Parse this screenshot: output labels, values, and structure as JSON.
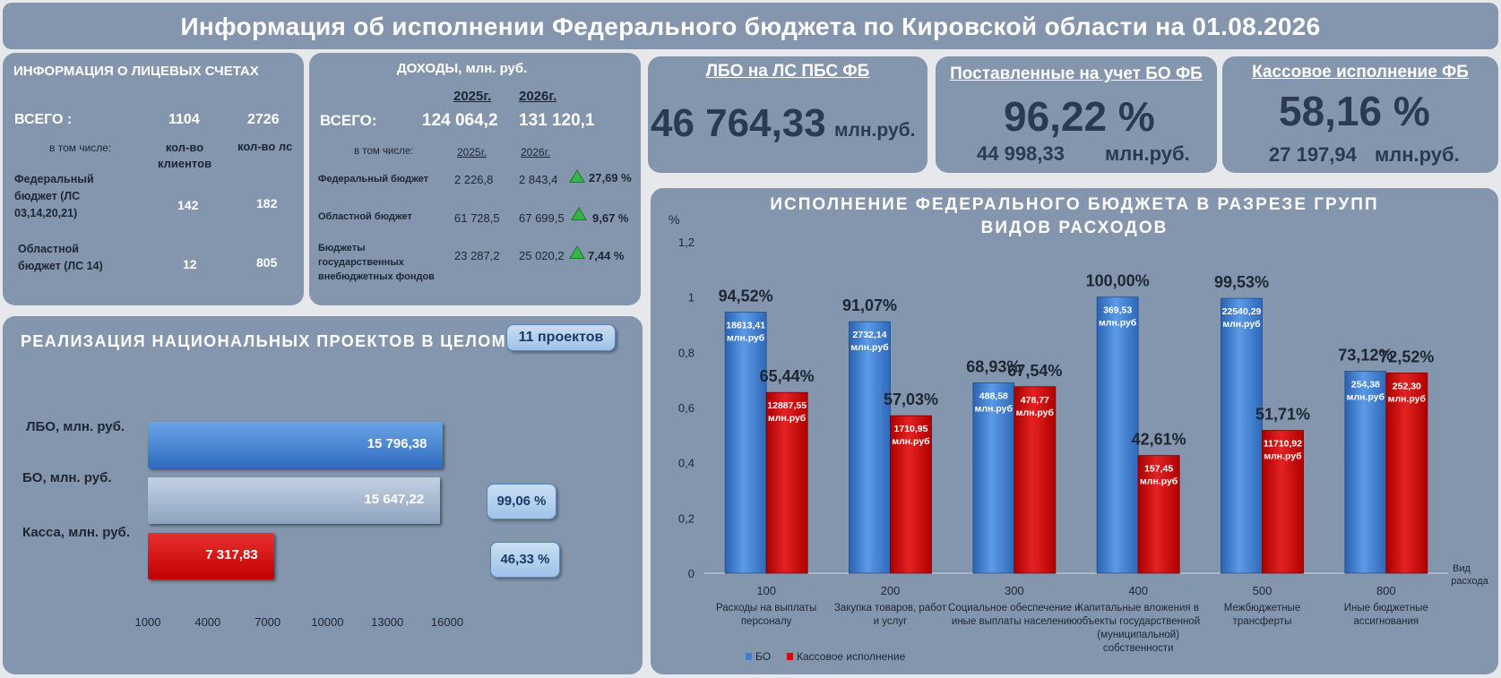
{
  "title": "Информация об исполнении Федерального бюджета по Кировской области на 01.08.2026",
  "accounts": {
    "heading": "ИНФОРМАЦИЯ О ЛИЦЕВЫХ СЧЕТАХ",
    "total_label": "ВСЕГО :",
    "total_clients": "1104",
    "total_ls": "2726",
    "including": "в том числе:",
    "col_clients": "кол-во клиентов",
    "col_ls": "кол-во лс",
    "rows": [
      {
        "label": "Федеральный бюджет (ЛС 03,14,20,21)",
        "clients": "142",
        "ls": "182"
      },
      {
        "label": "Областной бюджет (ЛС 14)",
        "clients": "12",
        "ls": "805"
      }
    ]
  },
  "income": {
    "heading": "ДОХОДЫ, млн. руб.",
    "y1": "2025г.",
    "y2": "2026г.",
    "total_label": "ВСЕГО:",
    "total_y1": "124 064,2",
    "total_y2": "131 120,1",
    "including": "в том числе:",
    "sub_y1": "2025г.",
    "sub_y2": "2026г.",
    "rows": [
      {
        "label": "Федеральный бюджет",
        "y1": "2 226,8",
        "y2": "2 843,4",
        "growth": "27,69 %"
      },
      {
        "label": "Областной бюджет",
        "y1": "61 728,5",
        "y2": "67 699,5",
        "growth": "9,67 %"
      },
      {
        "label": "Бюджеты государственных внебюджетных фондов",
        "y1": "23 287,2",
        "y2": "25 020,2",
        "growth": "7,44 %"
      }
    ]
  },
  "kpi": {
    "lbo": {
      "title": "ЛБО на ЛС ПБС ФБ",
      "value": "46 764,33",
      "unit": "млн.руб."
    },
    "bo": {
      "title": "Поставленные на учет БО ФБ",
      "percent": "96,22 %",
      "value": "44 998,33",
      "unit": "млн.руб."
    },
    "cash": {
      "title": "Кассовое исполнение ФБ",
      "percent": "58,16 %",
      "value": "27 197,94",
      "unit": "млн.руб."
    }
  },
  "projects": {
    "heading": "РЕАЛИЗАЦИЯ НАЦИОНАЛЬНЫХ ПРОЕКТОВ В ЦЕЛОМ",
    "badge": "11 проектов",
    "pct_bo": "99,06  %",
    "pct_cash": "46,33 %",
    "colors": {
      "lbo": "#3f7fcd",
      "bo": "#9fb2ca",
      "cash": "#d50a0a"
    }
  },
  "chart_data": [
    {
      "type": "bar",
      "orientation": "horizontal",
      "categories": [
        "ЛБО, млн. руб.",
        "БО, млн. руб.",
        "Касса, млн. руб."
      ],
      "values": [
        15796.38,
        15647.22,
        7317.83
      ],
      "value_labels": [
        "15 796,38",
        "15 647,22",
        "7 317,83"
      ],
      "xlim": [
        1000,
        16000
      ],
      "xticks": [
        "1000",
        "4000",
        "7000",
        "10000",
        "13000",
        "16000"
      ],
      "grid": false
    },
    {
      "type": "bar",
      "title": "ИСПОЛНЕНИЕ ФЕДЕРАЛЬНОГО БЮДЖЕТА В РАЗРЕЗЕ ГРУПП ВИДОВ РАСХОДОВ",
      "ylabel": "%",
      "xlabel": "Вид расхода",
      "ylim": [
        0,
        1.2
      ],
      "yticks": [
        "0",
        "0,2",
        "0,4",
        "0,6",
        "0,8",
        "1",
        "1,2"
      ],
      "legend": "bottom-left",
      "grid": false,
      "categories": [
        {
          "code": "100",
          "name": "Расходы на выплаты персоналу"
        },
        {
          "code": "200",
          "name": "Закупка товаров, работ и услуг"
        },
        {
          "code": "300",
          "name": "Социальное обеспечение и иные выплаты населению"
        },
        {
          "code": "400",
          "name": "Капитальные вложения в объекты государственной (муниципальной) собственности"
        },
        {
          "code": "500",
          "name": "Межбюджетные трансферты"
        },
        {
          "code": "800",
          "name": "Иные бюджетные ассигнования"
        }
      ],
      "series": [
        {
          "name": "БО",
          "color": "#3f7fcd",
          "values": [
            0.9452,
            0.9107,
            0.6893,
            1.0,
            0.9953,
            0.7312
          ],
          "pct_labels": [
            "94,52%",
            "91,07%",
            "68,93%",
            "100,00%",
            "99,53%",
            "73,12%"
          ],
          "amount_labels": [
            "18613,41",
            "2732,14",
            "488,58",
            "369,53",
            "22540,29",
            "254,38"
          ]
        },
        {
          "name": "Кассовое исполнение",
          "color": "#d50a0a",
          "values": [
            0.6544,
            0.5703,
            0.6754,
            0.4261,
            0.5171,
            0.7252
          ],
          "pct_labels": [
            "65,44%",
            "57,03%",
            "67,54%",
            "42,61%",
            "51,71%",
            "72,52%"
          ],
          "amount_labels": [
            "12887,55",
            "1710,95",
            "478,77",
            "157,45",
            "11710,92",
            "252,30"
          ]
        }
      ],
      "amount_unit": "млн.руб"
    }
  ]
}
